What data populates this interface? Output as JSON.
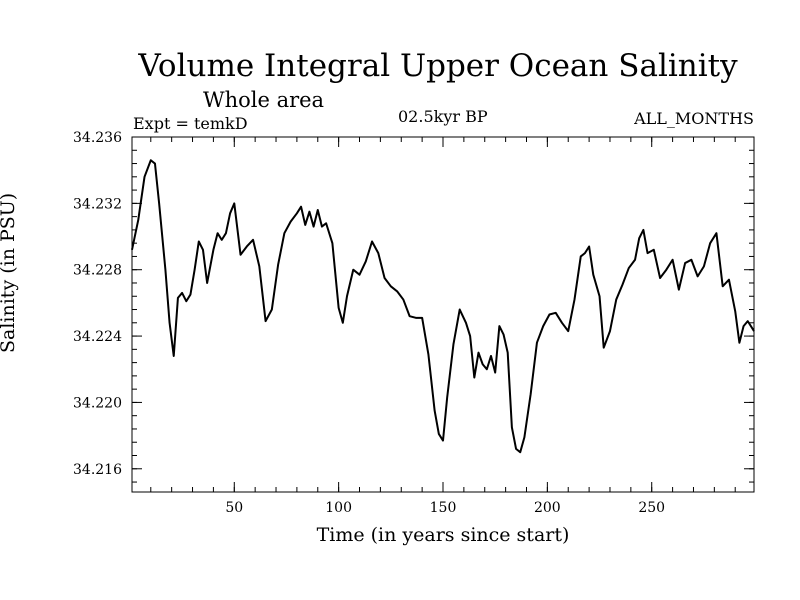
{
  "chart_data": {
    "type": "line",
    "title": "Volume Integral Upper Ocean Salinity",
    "subtitle": "Whole area",
    "experiment": "Expt = temkD",
    "period": "02.5kyr BP",
    "months": "ALL_MONTHS",
    "xlabel": "Time (in years since start)",
    "ylabel": "Salinity (in PSU)",
    "xlim": [
      1,
      299
    ],
    "ylim": [
      34.2146,
      34.236
    ],
    "xticks": [
      50,
      100,
      150,
      200,
      250
    ],
    "xtick_labels": [
      "50",
      "100",
      "150",
      "200",
      "250"
    ],
    "yticks": [
      34.216,
      34.22,
      34.224,
      34.228,
      34.232,
      34.236
    ],
    "ytick_labels": [
      "34.216",
      "34.220",
      "34.224",
      "34.228",
      "34.232",
      "34.236"
    ],
    "series": [
      {
        "name": "Salinity",
        "color": "#000000",
        "x": [
          1,
          4,
          7,
          10,
          12,
          14,
          17,
          19,
          21,
          23,
          25,
          27,
          29,
          31,
          33,
          35,
          37,
          40,
          42,
          44,
          46,
          48,
          50,
          53,
          56,
          59,
          62,
          65,
          68,
          71,
          74,
          77,
          80,
          82,
          84,
          86,
          88,
          90,
          92,
          94,
          97,
          100,
          102,
          104,
          107,
          110,
          113,
          116,
          119,
          122,
          125,
          128,
          131,
          134,
          137,
          140,
          143,
          146,
          148,
          150,
          152,
          155,
          158,
          161,
          163,
          165,
          167,
          169,
          171,
          173,
          175,
          177,
          179,
          181,
          183,
          185,
          187,
          189,
          192,
          195,
          198,
          201,
          204,
          207,
          210,
          213,
          216,
          218,
          220,
          222,
          225,
          227,
          230,
          233,
          236,
          239,
          242,
          244,
          246,
          248,
          251,
          254,
          257,
          260,
          263,
          266,
          269,
          272,
          275,
          278,
          281,
          284,
          287,
          290,
          292,
          294,
          296,
          299
        ],
        "values": [
          34.2292,
          34.231,
          34.2336,
          34.2346,
          34.2344,
          34.232,
          34.228,
          34.2248,
          34.2228,
          34.2263,
          34.2266,
          34.2261,
          34.2265,
          34.228,
          34.2297,
          34.2292,
          34.2272,
          34.2292,
          34.2302,
          34.2298,
          34.2302,
          34.2314,
          34.232,
          34.2289,
          34.2294,
          34.2298,
          34.2282,
          34.2249,
          34.2256,
          34.2283,
          34.2302,
          34.2309,
          34.2314,
          34.2318,
          34.2307,
          34.2315,
          34.2306,
          34.2316,
          34.2306,
          34.2308,
          34.2296,
          34.2257,
          34.2248,
          34.2264,
          34.228,
          34.2277,
          34.2285,
          34.2297,
          34.229,
          34.2275,
          34.227,
          34.2267,
          34.2262,
          34.2252,
          34.2251,
          34.2251,
          34.2229,
          34.2195,
          34.2181,
          34.2177,
          34.2203,
          34.2235,
          34.2256,
          34.2248,
          34.224,
          34.2215,
          34.223,
          34.2223,
          34.222,
          34.2228,
          34.2218,
          34.2246,
          34.2241,
          34.223,
          34.2185,
          34.2172,
          34.217,
          34.2179,
          34.2205,
          34.2236,
          34.2246,
          34.2253,
          34.2254,
          34.2248,
          34.2243,
          34.2262,
          34.2288,
          34.229,
          34.2294,
          34.2277,
          34.2264,
          34.2233,
          34.2243,
          34.2262,
          34.2271,
          34.2281,
          34.2286,
          34.2299,
          34.2304,
          34.229,
          34.2292,
          34.2275,
          34.228,
          34.2286,
          34.2268,
          34.2284,
          34.2286,
          34.2276,
          34.2282,
          34.2296,
          34.2302,
          34.227,
          34.2274,
          34.2255,
          34.2236,
          34.2246,
          34.2249,
          34.2243
        ]
      }
    ]
  }
}
